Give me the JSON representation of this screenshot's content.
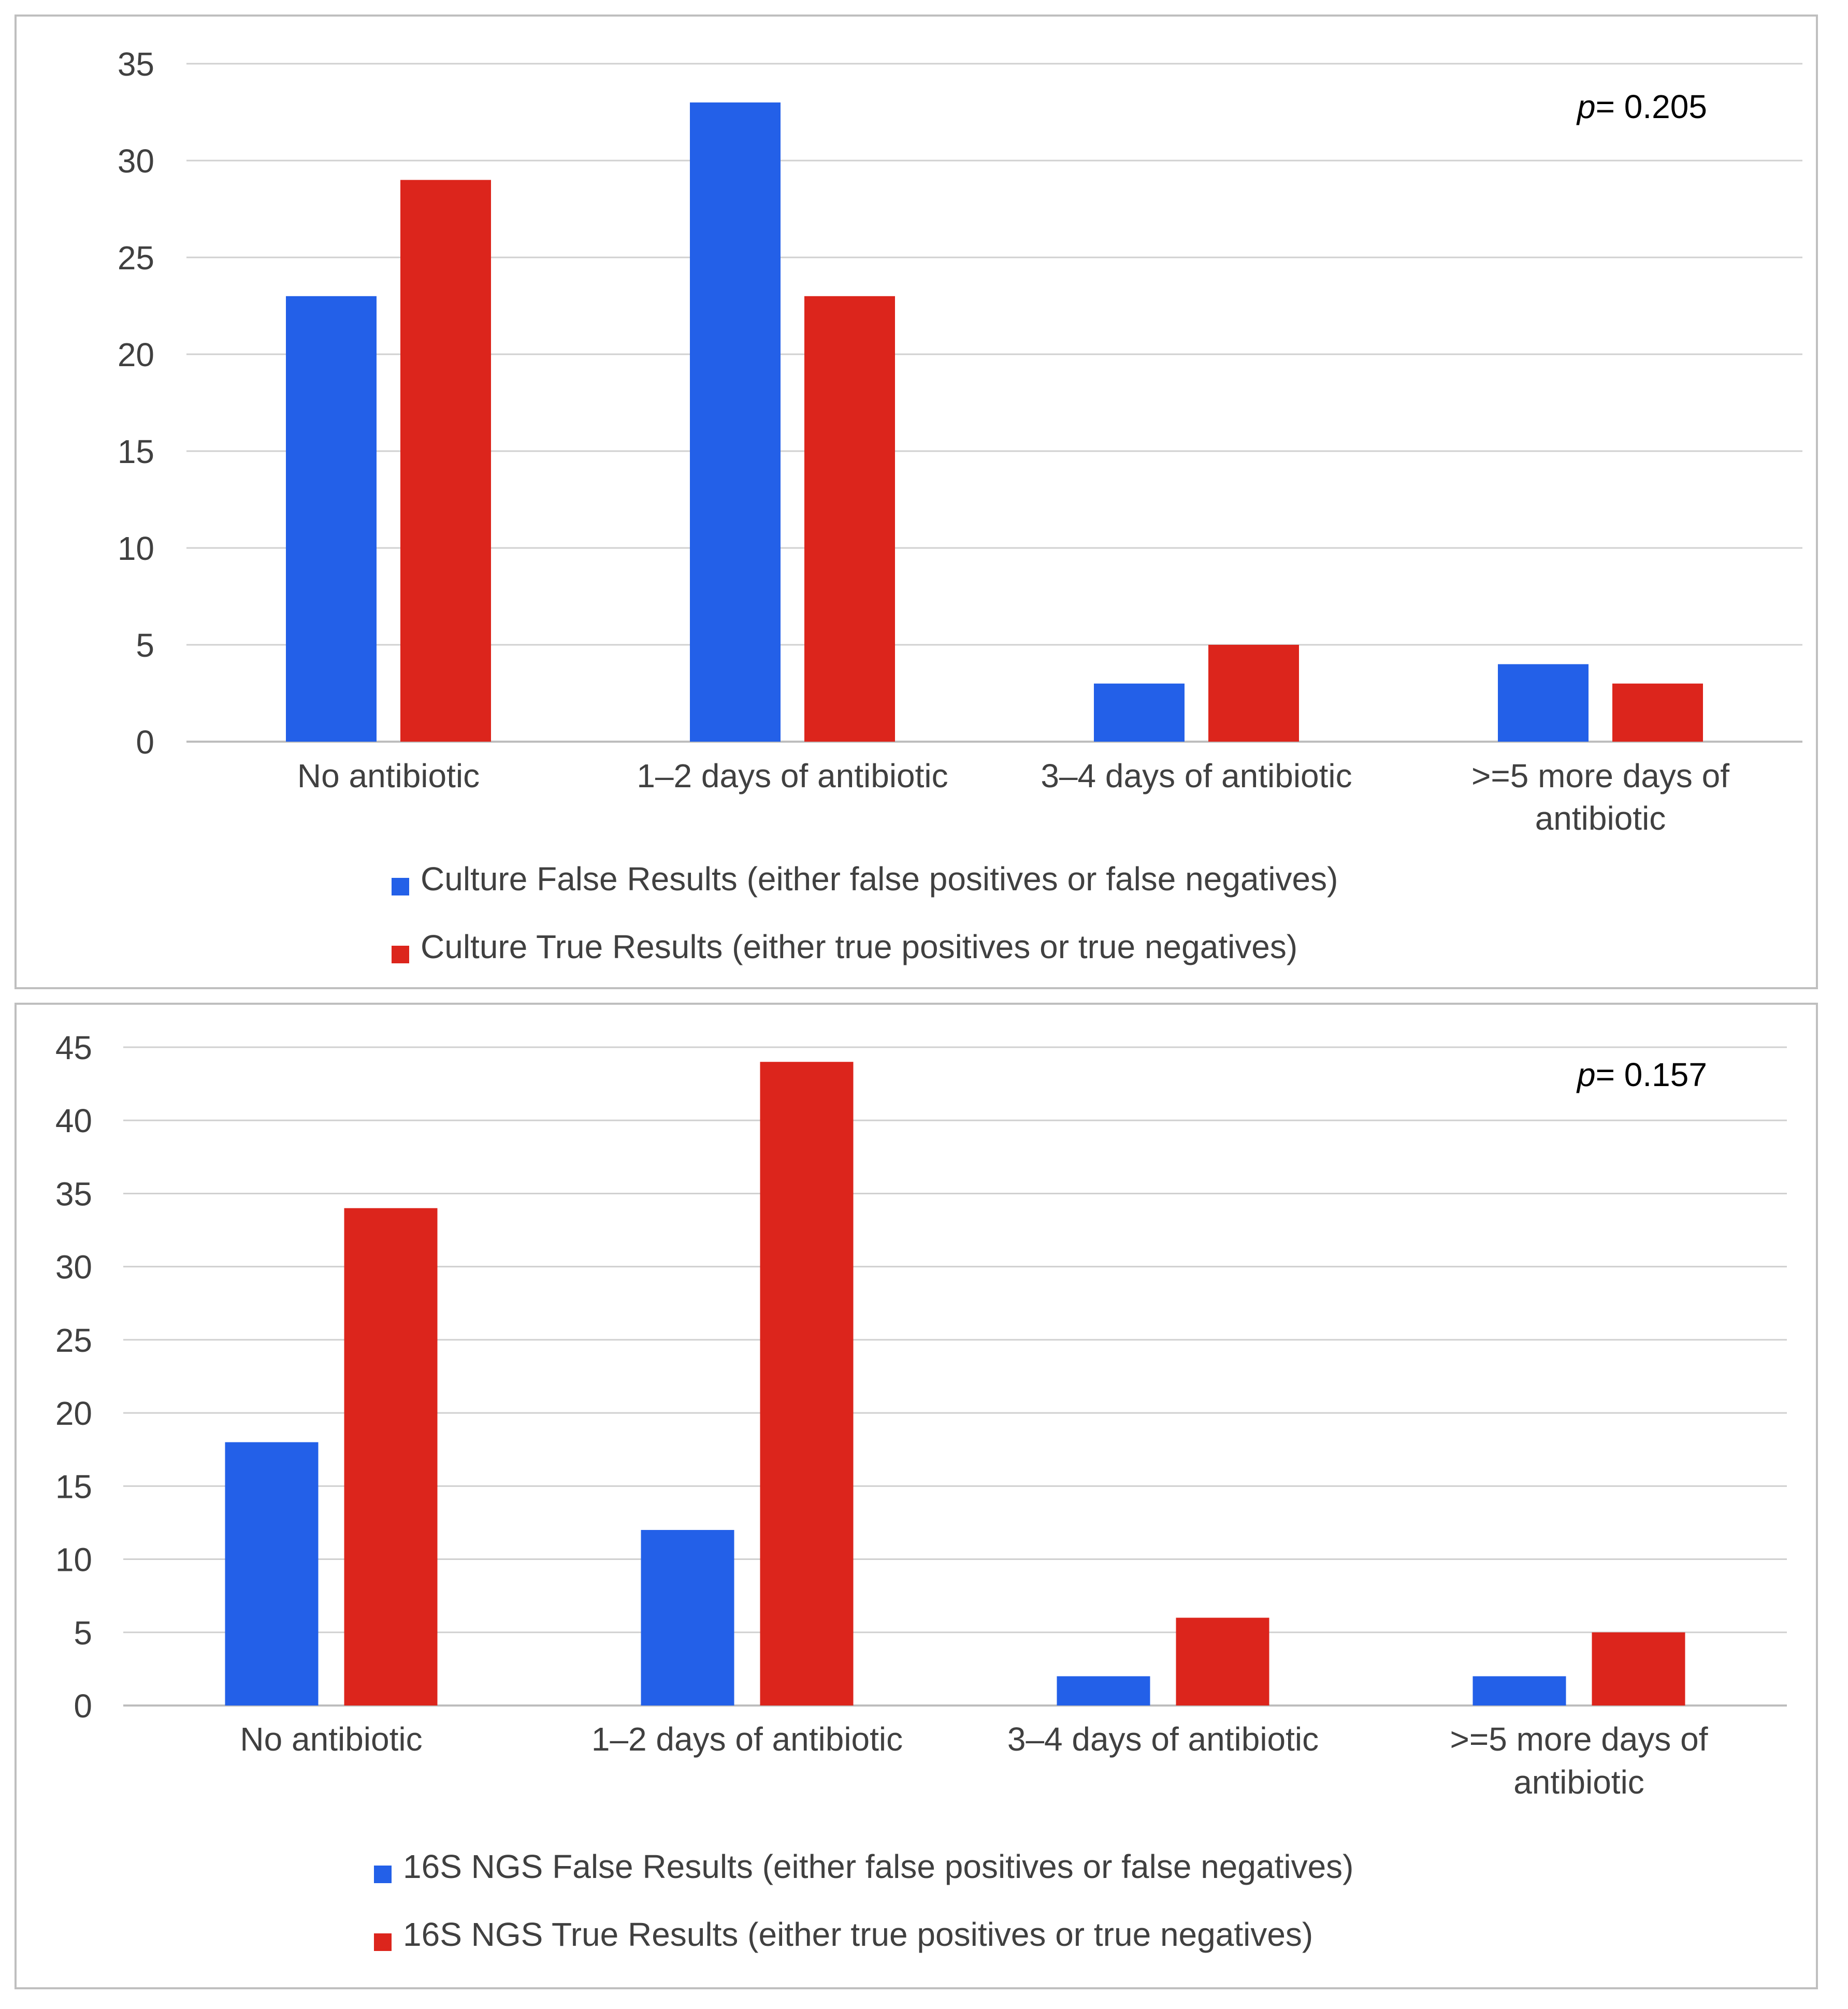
{
  "colors": {
    "false_series": "#2360E8",
    "true_series": "#DC251C",
    "grid": "#D0D0D0",
    "axis": "#BDBDBD",
    "panel_border": "#BFBFBF",
    "text": "#404040"
  },
  "chart_data": [
    {
      "type": "bar",
      "categories": [
        "No antibiotic",
        "1–2 days of antibiotic",
        "3–4 days of antibiotic",
        ">=5 more days of antibiotic"
      ],
      "category_lines": [
        [
          "No antibiotic"
        ],
        [
          "1–2 days of antibiotic"
        ],
        [
          "3–4 days of antibiotic"
        ],
        [
          ">=5 more days of",
          "antibiotic"
        ]
      ],
      "series": [
        {
          "name": "Culture False Results (either false positives or false negatives)",
          "values": [
            23,
            33,
            3,
            4
          ]
        },
        {
          "name": "Culture True Results (either true positives or true negatives)",
          "values": [
            29,
            23,
            5,
            3
          ]
        }
      ],
      "ylim": [
        0,
        35
      ],
      "yticks": [
        0,
        5,
        10,
        15,
        20,
        25,
        30,
        35
      ],
      "annotation": {
        "prefix": "p",
        "text": "= 0.205"
      },
      "grid": true,
      "legend": "bottom"
    },
    {
      "type": "bar",
      "categories": [
        "No antibiotic",
        "1–2 days of antibiotic",
        "3–4 days of antibiotic",
        ">=5 more days of antibiotic"
      ],
      "category_lines": [
        [
          "No antibiotic"
        ],
        [
          "1–2 days of antibiotic"
        ],
        [
          "3–4 days of antibiotic"
        ],
        [
          ">=5 more days of",
          "antibiotic"
        ]
      ],
      "series": [
        {
          "name": "16S NGS False Results (either false positives or false negatives)",
          "values": [
            18,
            12,
            2,
            2
          ]
        },
        {
          "name": "16S NGS True Results (either true positives or true negatives)",
          "values": [
            34,
            44,
            6,
            5
          ]
        }
      ],
      "ylim": [
        0,
        45
      ],
      "yticks": [
        0,
        5,
        10,
        15,
        20,
        25,
        30,
        35,
        40,
        45
      ],
      "annotation": {
        "prefix": "p",
        "text": "= 0.157"
      },
      "grid": true,
      "legend": "bottom"
    }
  ]
}
